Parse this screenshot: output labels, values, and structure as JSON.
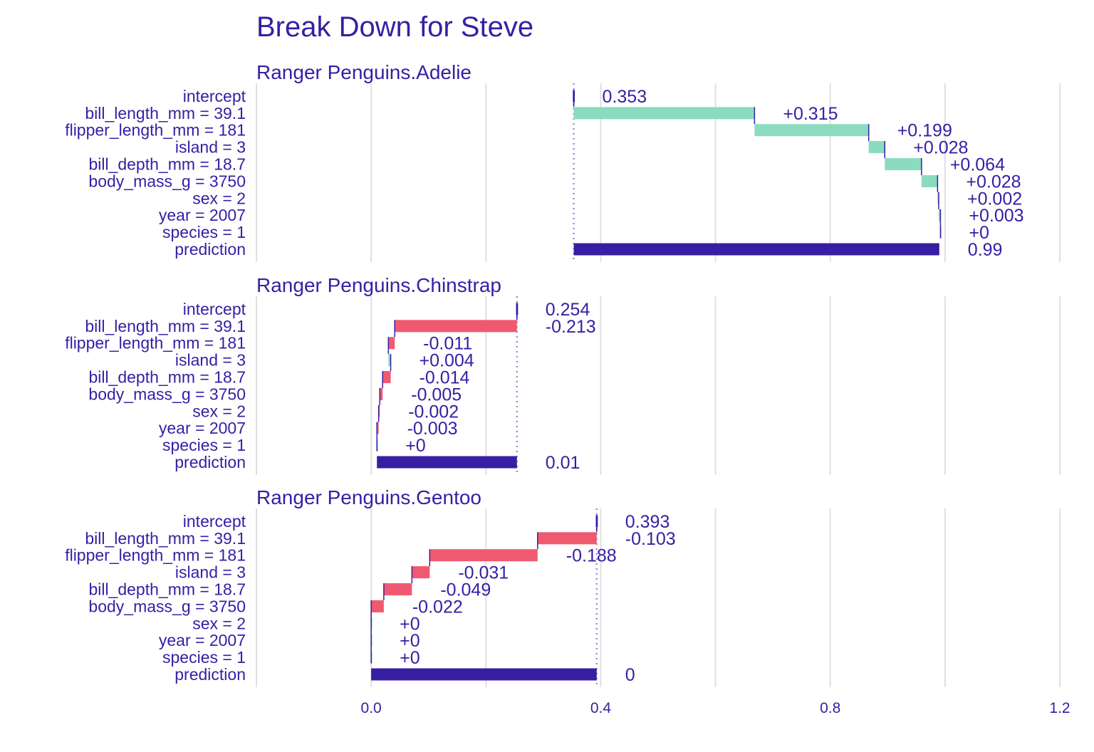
{
  "chart_data": {
    "type": "bar",
    "subtype": "waterfall",
    "title": "Break Down for Steve",
    "xlim": [
      -0.2,
      1.2
    ],
    "x_ticks": [
      0.0,
      0.4,
      0.8,
      1.2
    ],
    "x_tick_labels": [
      "0.0",
      "0.4",
      "0.8",
      "1.2"
    ],
    "grid": true,
    "categories": [
      "intercept",
      "bill_length_mm = 39.1",
      "flipper_length_mm = 181",
      "island = 3",
      "bill_depth_mm = 18.7",
      "body_mass_g = 3750",
      "sex = 2",
      "year = 2007",
      "species = 1",
      "prediction"
    ],
    "colors": {
      "positive": "#8bdcbe",
      "negative": "#f05a71",
      "prediction": "#371ea3",
      "text": "#371ea3",
      "grid": "#e0e0e0",
      "intercept_line": "#9b8fd1"
    },
    "panels": [
      {
        "title": "Ranger Penguins.Adelie",
        "intercept": 0.353,
        "contributions": [
          0.315,
          0.199,
          0.028,
          0.064,
          0.028,
          0.002,
          0.003,
          0.0
        ],
        "prediction": 0.99,
        "labels": [
          "0.353",
          "+0.315",
          "+0.199",
          "+0.028",
          "+0.064",
          "+0.028",
          "+0.002",
          "+0.003",
          "+0",
          "0.99"
        ]
      },
      {
        "title": "Ranger Penguins.Chinstrap",
        "intercept": 0.254,
        "contributions": [
          -0.213,
          -0.011,
          0.004,
          -0.014,
          -0.005,
          -0.002,
          -0.003,
          0.0
        ],
        "prediction": 0.01,
        "labels": [
          "0.254",
          "-0.213",
          "-0.011",
          "+0.004",
          "-0.014",
          "-0.005",
          "-0.002",
          "-0.003",
          "+0",
          "0.01"
        ]
      },
      {
        "title": "Ranger Penguins.Gentoo",
        "intercept": 0.393,
        "contributions": [
          -0.103,
          -0.188,
          -0.031,
          -0.049,
          -0.022,
          0.0,
          0.0,
          0.0
        ],
        "prediction": 0.0,
        "labels": [
          "0.393",
          "-0.103",
          "-0.188",
          "-0.031",
          "-0.049",
          "-0.022",
          "+0",
          "+0",
          "+0",
          "0"
        ]
      }
    ]
  }
}
